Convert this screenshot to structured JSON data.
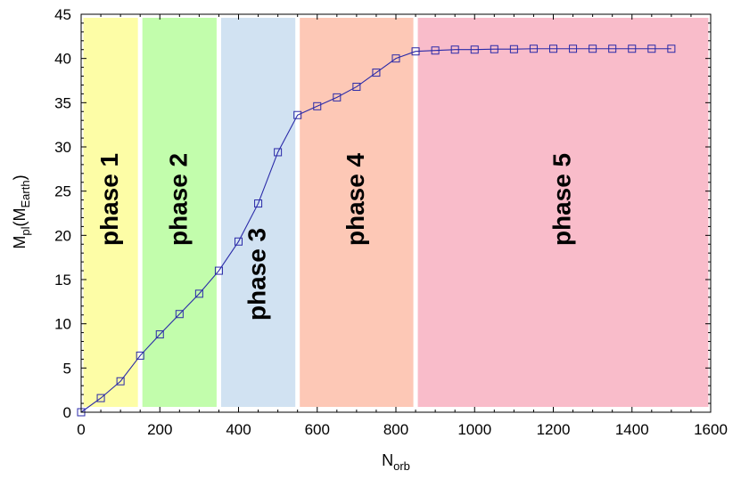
{
  "chart_data": {
    "type": "line",
    "xlabel": {
      "main": "N",
      "sub": "orb"
    },
    "ylabel": {
      "main": "M",
      "sub1": "pl",
      "mid": "(M",
      "sub2": "Earth",
      "end": ")"
    },
    "xlim": [
      0,
      1600
    ],
    "ylim": [
      0,
      45
    ],
    "xticks": [
      0,
      200,
      400,
      600,
      800,
      1000,
      1200,
      1400,
      1600
    ],
    "yticks": [
      0,
      5,
      10,
      15,
      20,
      25,
      30,
      35,
      40,
      45
    ],
    "grid": false,
    "marker": "open-square",
    "line_color": "#2a2aa8",
    "phases": [
      {
        "label": "phase 1",
        "x_start": 0,
        "x_end": 150,
        "color": "#fdfda6"
      },
      {
        "label": "phase 2",
        "x_start": 150,
        "x_end": 350,
        "color": "#c2fdac"
      },
      {
        "label": "phase 3",
        "x_start": 350,
        "x_end": 550,
        "color": "#d1e2f2"
      },
      {
        "label": "phase 4",
        "x_start": 550,
        "x_end": 850,
        "color": "#fdc8b6"
      },
      {
        "label": "phase 5",
        "x_start": 850,
        "x_end": 1600,
        "color": "#f9bcca"
      }
    ],
    "series": [
      {
        "x": [
          0,
          50,
          100,
          150,
          200,
          250,
          300,
          350,
          400,
          450,
          500,
          550,
          600,
          650,
          700,
          750,
          800,
          850,
          900,
          950,
          1000,
          1050,
          1100,
          1150,
          1200,
          1250,
          1300,
          1350,
          1400,
          1450,
          1500
        ],
        "y": [
          0.0,
          1.6,
          3.5,
          6.4,
          8.8,
          11.1,
          13.4,
          16.0,
          19.3,
          23.6,
          29.4,
          33.6,
          34.6,
          35.6,
          36.8,
          38.4,
          40.0,
          40.8,
          40.9,
          41.0,
          41.0,
          41.05,
          41.05,
          41.1,
          41.1,
          41.1,
          41.1,
          41.1,
          41.1,
          41.1,
          41.1
        ]
      }
    ]
  }
}
